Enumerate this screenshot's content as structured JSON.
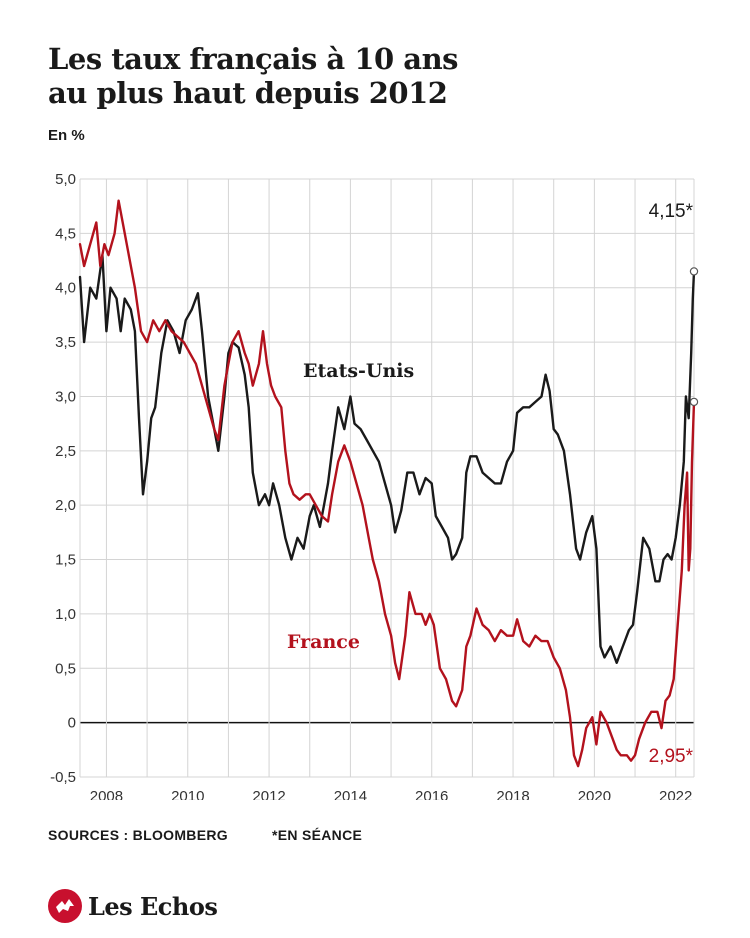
{
  "header": {
    "title_line1": "Les taux français à 10 ans",
    "title_line2": "au plus haut depuis 2012",
    "unit": "En %"
  },
  "footer": {
    "source": "SOURCES : BLOOMBERG",
    "note": "*EN SÉANCE"
  },
  "brand": {
    "name": "Les Echos",
    "icon": "les-echos-logo-icon",
    "color": "#c8102e"
  },
  "chart_data": {
    "type": "line",
    "title": "Les taux français à 10 ans au plus haut depuis 2012",
    "ylabel": "En %",
    "xlim": [
      2007.35,
      2022.45
    ],
    "ylim": [
      -0.5,
      5.0
    ],
    "y_ticks": [
      5.0,
      4.5,
      4.0,
      3.5,
      3.0,
      2.5,
      2.0,
      1.5,
      1.0,
      0.5,
      0,
      -0.5
    ],
    "y_tick_labels": [
      "5,0",
      "4,5",
      "4,0",
      "3,5",
      "3,0",
      "2,5",
      "2,0",
      "1,5",
      "1,0",
      "0,5",
      "0",
      "-0,5"
    ],
    "x_ticks": [
      2008,
      2010,
      2012,
      2014,
      2016,
      2018,
      2020,
      2022
    ],
    "x_tick_labels": [
      "2008",
      "2010",
      "2012",
      "2014",
      "2016",
      "2018",
      "2020",
      "2022"
    ],
    "grid": true,
    "zero_line": true,
    "series": [
      {
        "name": "Etats-Unis",
        "color": "#1a1a1a",
        "end_label": "4,15*",
        "points": [
          [
            2007.35,
            4.1
          ],
          [
            2007.45,
            3.5
          ],
          [
            2007.6,
            4.0
          ],
          [
            2007.75,
            3.9
          ],
          [
            2007.9,
            4.3
          ],
          [
            2008.0,
            3.6
          ],
          [
            2008.1,
            4.0
          ],
          [
            2008.25,
            3.9
          ],
          [
            2008.35,
            3.6
          ],
          [
            2008.45,
            3.9
          ],
          [
            2008.6,
            3.8
          ],
          [
            2008.7,
            3.6
          ],
          [
            2008.8,
            2.8
          ],
          [
            2008.9,
            2.1
          ],
          [
            2009.0,
            2.4
          ],
          [
            2009.1,
            2.8
          ],
          [
            2009.2,
            2.9
          ],
          [
            2009.35,
            3.4
          ],
          [
            2009.5,
            3.7
          ],
          [
            2009.65,
            3.6
          ],
          [
            2009.8,
            3.4
          ],
          [
            2009.95,
            3.7
          ],
          [
            2010.1,
            3.8
          ],
          [
            2010.25,
            3.95
          ],
          [
            2010.35,
            3.6
          ],
          [
            2010.5,
            3.0
          ],
          [
            2010.6,
            2.8
          ],
          [
            2010.75,
            2.5
          ],
          [
            2010.9,
            3.0
          ],
          [
            2011.0,
            3.4
          ],
          [
            2011.1,
            3.5
          ],
          [
            2011.25,
            3.45
          ],
          [
            2011.4,
            3.2
          ],
          [
            2011.5,
            2.9
          ],
          [
            2011.6,
            2.3
          ],
          [
            2011.75,
            2.0
          ],
          [
            2011.9,
            2.1
          ],
          [
            2012.0,
            2.0
          ],
          [
            2012.1,
            2.2
          ],
          [
            2012.25,
            2.0
          ],
          [
            2012.4,
            1.7
          ],
          [
            2012.55,
            1.5
          ],
          [
            2012.7,
            1.7
          ],
          [
            2012.85,
            1.6
          ],
          [
            2013.0,
            1.9
          ],
          [
            2013.1,
            2.0
          ],
          [
            2013.25,
            1.8
          ],
          [
            2013.35,
            2.0
          ],
          [
            2013.45,
            2.2
          ],
          [
            2013.55,
            2.5
          ],
          [
            2013.7,
            2.9
          ],
          [
            2013.85,
            2.7
          ],
          [
            2014.0,
            3.0
          ],
          [
            2014.1,
            2.75
          ],
          [
            2014.25,
            2.7
          ],
          [
            2014.4,
            2.6
          ],
          [
            2014.55,
            2.5
          ],
          [
            2014.7,
            2.4
          ],
          [
            2014.85,
            2.2
          ],
          [
            2015.0,
            2.0
          ],
          [
            2015.1,
            1.75
          ],
          [
            2015.25,
            1.95
          ],
          [
            2015.4,
            2.3
          ],
          [
            2015.55,
            2.3
          ],
          [
            2015.7,
            2.1
          ],
          [
            2015.85,
            2.25
          ],
          [
            2016.0,
            2.2
          ],
          [
            2016.1,
            1.9
          ],
          [
            2016.25,
            1.8
          ],
          [
            2016.4,
            1.7
          ],
          [
            2016.5,
            1.5
          ],
          [
            2016.6,
            1.55
          ],
          [
            2016.75,
            1.7
          ],
          [
            2016.85,
            2.3
          ],
          [
            2016.95,
            2.45
          ],
          [
            2017.1,
            2.45
          ],
          [
            2017.25,
            2.3
          ],
          [
            2017.4,
            2.25
          ],
          [
            2017.55,
            2.2
          ],
          [
            2017.7,
            2.2
          ],
          [
            2017.85,
            2.4
          ],
          [
            2018.0,
            2.5
          ],
          [
            2018.1,
            2.85
          ],
          [
            2018.25,
            2.9
          ],
          [
            2018.4,
            2.9
          ],
          [
            2018.55,
            2.95
          ],
          [
            2018.7,
            3.0
          ],
          [
            2018.8,
            3.2
          ],
          [
            2018.9,
            3.05
          ],
          [
            2019.0,
            2.7
          ],
          [
            2019.1,
            2.65
          ],
          [
            2019.25,
            2.5
          ],
          [
            2019.4,
            2.1
          ],
          [
            2019.55,
            1.6
          ],
          [
            2019.65,
            1.5
          ],
          [
            2019.8,
            1.75
          ],
          [
            2019.95,
            1.9
          ],
          [
            2020.05,
            1.6
          ],
          [
            2020.15,
            0.7
          ],
          [
            2020.25,
            0.6
          ],
          [
            2020.4,
            0.7
          ],
          [
            2020.55,
            0.55
          ],
          [
            2020.7,
            0.7
          ],
          [
            2020.85,
            0.85
          ],
          [
            2020.95,
            0.9
          ],
          [
            2021.05,
            1.2
          ],
          [
            2021.2,
            1.7
          ],
          [
            2021.35,
            1.6
          ],
          [
            2021.5,
            1.3
          ],
          [
            2021.6,
            1.3
          ],
          [
            2021.7,
            1.5
          ],
          [
            2021.8,
            1.55
          ],
          [
            2021.9,
            1.5
          ],
          [
            2022.0,
            1.7
          ],
          [
            2022.1,
            2.0
          ],
          [
            2022.2,
            2.4
          ],
          [
            2022.25,
            3.0
          ],
          [
            2022.32,
            2.8
          ],
          [
            2022.38,
            3.4
          ],
          [
            2022.42,
            3.9
          ],
          [
            2022.45,
            4.15
          ]
        ]
      },
      {
        "name": "France",
        "color": "#b3121d",
        "end_label": "2,95*",
        "points": [
          [
            2007.35,
            4.4
          ],
          [
            2007.45,
            4.2
          ],
          [
            2007.6,
            4.4
          ],
          [
            2007.75,
            4.6
          ],
          [
            2007.85,
            4.2
          ],
          [
            2007.95,
            4.4
          ],
          [
            2008.05,
            4.3
          ],
          [
            2008.2,
            4.5
          ],
          [
            2008.3,
            4.8
          ],
          [
            2008.4,
            4.6
          ],
          [
            2008.55,
            4.3
          ],
          [
            2008.7,
            4.0
          ],
          [
            2008.85,
            3.6
          ],
          [
            2009.0,
            3.5
          ],
          [
            2009.15,
            3.7
          ],
          [
            2009.3,
            3.6
          ],
          [
            2009.45,
            3.7
          ],
          [
            2009.6,
            3.6
          ],
          [
            2009.75,
            3.55
          ],
          [
            2009.9,
            3.5
          ],
          [
            2010.05,
            3.4
          ],
          [
            2010.2,
            3.3
          ],
          [
            2010.35,
            3.1
          ],
          [
            2010.5,
            2.9
          ],
          [
            2010.65,
            2.7
          ],
          [
            2010.75,
            2.6
          ],
          [
            2010.9,
            3.1
          ],
          [
            2011.0,
            3.3
          ],
          [
            2011.1,
            3.5
          ],
          [
            2011.25,
            3.6
          ],
          [
            2011.4,
            3.4
          ],
          [
            2011.5,
            3.3
          ],
          [
            2011.6,
            3.1
          ],
          [
            2011.75,
            3.3
          ],
          [
            2011.85,
            3.6
          ],
          [
            2011.95,
            3.3
          ],
          [
            2012.05,
            3.1
          ],
          [
            2012.15,
            3.0
          ],
          [
            2012.3,
            2.9
          ],
          [
            2012.4,
            2.5
          ],
          [
            2012.5,
            2.2
          ],
          [
            2012.6,
            2.1
          ],
          [
            2012.75,
            2.05
          ],
          [
            2012.9,
            2.1
          ],
          [
            2013.0,
            2.1
          ],
          [
            2013.15,
            2.0
          ],
          [
            2013.3,
            1.9
          ],
          [
            2013.45,
            1.85
          ],
          [
            2013.55,
            2.1
          ],
          [
            2013.7,
            2.4
          ],
          [
            2013.85,
            2.55
          ],
          [
            2014.0,
            2.4
          ],
          [
            2014.15,
            2.2
          ],
          [
            2014.3,
            2.0
          ],
          [
            2014.45,
            1.7
          ],
          [
            2014.55,
            1.5
          ],
          [
            2014.7,
            1.3
          ],
          [
            2014.85,
            1.0
          ],
          [
            2015.0,
            0.8
          ],
          [
            2015.1,
            0.55
          ],
          [
            2015.2,
            0.4
          ],
          [
            2015.35,
            0.8
          ],
          [
            2015.45,
            1.2
          ],
          [
            2015.6,
            1.0
          ],
          [
            2015.75,
            1.0
          ],
          [
            2015.85,
            0.9
          ],
          [
            2015.95,
            1.0
          ],
          [
            2016.05,
            0.9
          ],
          [
            2016.2,
            0.5
          ],
          [
            2016.35,
            0.4
          ],
          [
            2016.5,
            0.2
          ],
          [
            2016.6,
            0.15
          ],
          [
            2016.75,
            0.3
          ],
          [
            2016.85,
            0.7
          ],
          [
            2016.95,
            0.8
          ],
          [
            2017.1,
            1.05
          ],
          [
            2017.25,
            0.9
          ],
          [
            2017.4,
            0.85
          ],
          [
            2017.55,
            0.75
          ],
          [
            2017.7,
            0.85
          ],
          [
            2017.85,
            0.8
          ],
          [
            2018.0,
            0.8
          ],
          [
            2018.1,
            0.95
          ],
          [
            2018.25,
            0.75
          ],
          [
            2018.4,
            0.7
          ],
          [
            2018.55,
            0.8
          ],
          [
            2018.7,
            0.75
          ],
          [
            2018.85,
            0.75
          ],
          [
            2019.0,
            0.6
          ],
          [
            2019.15,
            0.5
          ],
          [
            2019.3,
            0.3
          ],
          [
            2019.4,
            0.05
          ],
          [
            2019.5,
            -0.3
          ],
          [
            2019.6,
            -0.4
          ],
          [
            2019.7,
            -0.25
          ],
          [
            2019.8,
            -0.05
          ],
          [
            2019.95,
            0.05
          ],
          [
            2020.05,
            -0.2
          ],
          [
            2020.15,
            0.1
          ],
          [
            2020.3,
            0.0
          ],
          [
            2020.45,
            -0.15
          ],
          [
            2020.55,
            -0.25
          ],
          [
            2020.65,
            -0.3
          ],
          [
            2020.8,
            -0.3
          ],
          [
            2020.9,
            -0.35
          ],
          [
            2021.0,
            -0.3
          ],
          [
            2021.1,
            -0.15
          ],
          [
            2021.25,
            0.0
          ],
          [
            2021.4,
            0.1
          ],
          [
            2021.55,
            0.1
          ],
          [
            2021.65,
            -0.05
          ],
          [
            2021.75,
            0.2
          ],
          [
            2021.85,
            0.25
          ],
          [
            2021.95,
            0.4
          ],
          [
            2022.05,
            0.9
          ],
          [
            2022.15,
            1.4
          ],
          [
            2022.22,
            2.0
          ],
          [
            2022.28,
            2.3
          ],
          [
            2022.32,
            1.4
          ],
          [
            2022.36,
            1.6
          ],
          [
            2022.4,
            2.4
          ],
          [
            2022.45,
            2.95
          ]
        ]
      }
    ]
  }
}
